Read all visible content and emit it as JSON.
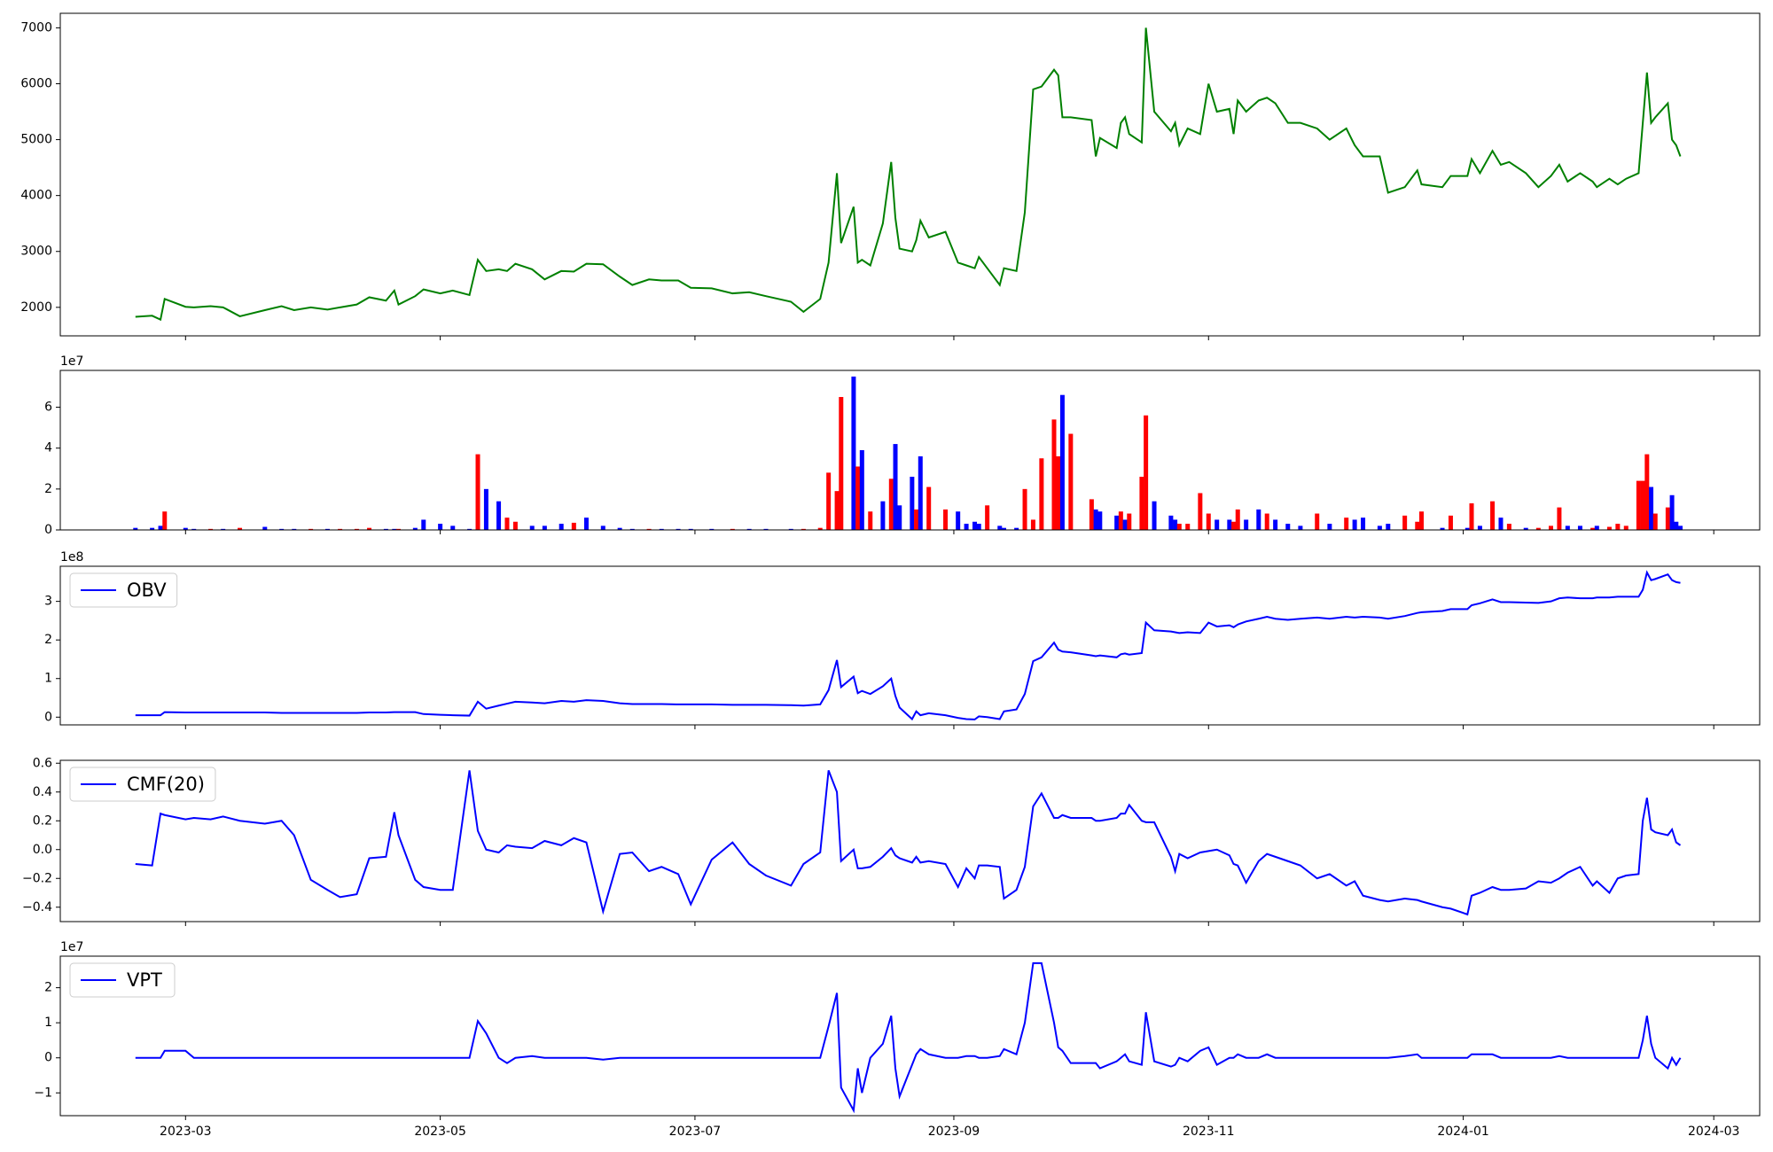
{
  "chart_data": {
    "type": "multi-panel",
    "x": [
      "2023-02-17",
      "2023-02-21",
      "2023-02-23",
      "2023-02-24",
      "2023-03-01",
      "2023-03-03",
      "2023-03-07",
      "2023-03-10",
      "2023-03-14",
      "2023-03-20",
      "2023-03-24",
      "2023-03-27",
      "2023-03-31",
      "2023-04-04",
      "2023-04-07",
      "2023-04-11",
      "2023-04-14",
      "2023-04-18",
      "2023-04-20",
      "2023-04-21",
      "2023-04-25",
      "2023-04-27",
      "2023-05-01",
      "2023-05-04",
      "2023-05-08",
      "2023-05-10",
      "2023-05-12",
      "2023-05-15",
      "2023-05-17",
      "2023-05-19",
      "2023-05-23",
      "2023-05-26",
      "2023-05-30",
      "2023-06-02",
      "2023-06-05",
      "2023-06-09",
      "2023-06-13",
      "2023-06-16",
      "2023-06-20",
      "2023-06-23",
      "2023-06-27",
      "2023-06-30",
      "2023-07-05",
      "2023-07-10",
      "2023-07-14",
      "2023-07-18",
      "2023-07-24",
      "2023-07-27",
      "2023-07-31",
      "2023-08-02",
      "2023-08-04",
      "2023-08-05",
      "2023-08-08",
      "2023-08-09",
      "2023-08-10",
      "2023-08-12",
      "2023-08-15",
      "2023-08-17",
      "2023-08-18",
      "2023-08-19",
      "2023-08-22",
      "2023-08-23",
      "2023-08-24",
      "2023-08-26",
      "2023-08-30",
      "2023-09-02",
      "2023-09-04",
      "2023-09-06",
      "2023-09-07",
      "2023-09-09",
      "2023-09-12",
      "2023-09-13",
      "2023-09-16",
      "2023-09-18",
      "2023-09-20",
      "2023-09-22",
      "2023-09-25",
      "2023-09-26",
      "2023-09-27",
      "2023-09-29",
      "2023-10-04",
      "2023-10-05",
      "2023-10-06",
      "2023-10-10",
      "2023-10-11",
      "2023-10-12",
      "2023-10-13",
      "2023-10-16",
      "2023-10-17",
      "2023-10-19",
      "2023-10-23",
      "2023-10-24",
      "2023-10-25",
      "2023-10-27",
      "2023-10-30",
      "2023-11-01",
      "2023-11-03",
      "2023-11-06",
      "2023-11-07",
      "2023-11-08",
      "2023-11-10",
      "2023-11-13",
      "2023-11-15",
      "2023-11-17",
      "2023-11-20",
      "2023-11-23",
      "2023-11-27",
      "2023-11-30",
      "2023-12-04",
      "2023-12-06",
      "2023-12-08",
      "2023-12-12",
      "2023-12-14",
      "2023-12-18",
      "2023-12-21",
      "2023-12-22",
      "2023-12-27",
      "2023-12-29",
      "2024-01-02",
      "2024-01-03",
      "2024-01-05",
      "2024-01-08",
      "2024-01-10",
      "2024-01-12",
      "2024-01-16",
      "2024-01-19",
      "2024-01-22",
      "2024-01-24",
      "2024-01-26",
      "2024-01-29",
      "2024-02-01",
      "2024-02-02",
      "2024-02-05",
      "2024-02-07",
      "2024-02-09",
      "2024-02-12",
      "2024-02-13",
      "2024-02-14",
      "2024-02-15",
      "2024-02-16",
      "2024-02-19",
      "2024-02-20",
      "2024-02-21",
      "2024-02-22"
    ],
    "xlim": [
      "2023-01-30",
      "2024-03-12"
    ],
    "xticks": [
      {
        "value": "2023-03-01",
        "label": "2023-03"
      },
      {
        "value": "2023-05-01",
        "label": "2023-05"
      },
      {
        "value": "2023-07-01",
        "label": "2023-07"
      },
      {
        "value": "2023-09-01",
        "label": "2023-09"
      },
      {
        "value": "2023-11-01",
        "label": "2023-11"
      },
      {
        "value": "2024-01-01",
        "label": "2024-01"
      },
      {
        "value": "2024-03-01",
        "label": "2024-03"
      }
    ],
    "panels": [
      {
        "type": "line",
        "color": "#008000",
        "ylim": [
          1490,
          7260
        ],
        "yticks": [
          2000,
          3000,
          4000,
          5000,
          6000,
          7000
        ],
        "values": [
          1830,
          1850,
          1780,
          2150,
          2010,
          2000,
          2020,
          2000,
          1840,
          1950,
          2020,
          1950,
          2000,
          1960,
          2000,
          2050,
          2180,
          2120,
          2300,
          2050,
          2200,
          2320,
          2250,
          2300,
          2220,
          2850,
          2650,
          2680,
          2650,
          2780,
          2680,
          2500,
          2650,
          2640,
          2780,
          2770,
          2550,
          2400,
          2500,
          2480,
          2480,
          2350,
          2340,
          2250,
          2270,
          2200,
          2100,
          1920,
          2150,
          2800,
          4400,
          3150,
          3800,
          2800,
          2850,
          2750,
          3500,
          4600,
          3600,
          3050,
          3000,
          3200,
          3550,
          3250,
          3350,
          2800,
          2750,
          2700,
          2900,
          2700,
          2400,
          2700,
          2650,
          3700,
          5900,
          5950,
          6250,
          6150,
          5400,
          5400,
          5350,
          4700,
          5030,
          4850,
          5300,
          5400,
          5100,
          4950,
          7000,
          5500,
          5150,
          5300,
          4900,
          5200,
          5100,
          6000,
          5500,
          5550,
          5100,
          5700,
          5500,
          5700,
          5750,
          5650,
          5300,
          5300,
          5200,
          5000,
          5200,
          4900,
          4700,
          4700,
          4050,
          4150,
          4450,
          4200,
          4150,
          4350,
          4350,
          4650,
          4400,
          4800,
          4550,
          4600,
          4400,
          4150,
          4350,
          4550,
          4250,
          4400,
          4250,
          4150,
          4300,
          4200,
          4300,
          4400,
          5300,
          6200,
          5300,
          5400,
          5650,
          5000,
          4900,
          4700
        ]
      },
      {
        "type": "bar",
        "offset_label": "1e7",
        "ylim": [
          0,
          7.8
        ],
        "yticks": [
          0,
          2,
          4,
          6
        ],
        "values": [
          0.1,
          0.1,
          0.2,
          0.9,
          0.1,
          0.05,
          0.05,
          0.05,
          0.1,
          0.15,
          0.05,
          0.05,
          0.05,
          0.05,
          0.05,
          0.05,
          0.1,
          0.05,
          0.05,
          0.05,
          0.1,
          0.5,
          0.3,
          0.2,
          0.05,
          3.7,
          2.0,
          1.4,
          0.6,
          0.4,
          0.2,
          0.2,
          0.3,
          0.35,
          0.6,
          0.2,
          0.1,
          0.05,
          0.05,
          0.05,
          0.05,
          0.05,
          0.05,
          0.05,
          0.05,
          0.05,
          0.05,
          0.05,
          0.1,
          2.8,
          1.9,
          6.5,
          7.5,
          3.1,
          3.9,
          0.9,
          1.4,
          2.5,
          4.2,
          1.2,
          2.6,
          1.0,
          3.6,
          2.1,
          1.0,
          0.9,
          0.3,
          0.4,
          0.3,
          1.2,
          0.2,
          0.1,
          0.1,
          2.0,
          0.5,
          3.5,
          5.4,
          3.6,
          6.6,
          4.7,
          1.5,
          1.0,
          0.9,
          0.7,
          0.9,
          0.5,
          0.8,
          2.6,
          5.6,
          1.4,
          0.7,
          0.5,
          0.3,
          0.3,
          1.8,
          0.8,
          0.5,
          0.5,
          0.4,
          1.0,
          0.5,
          1.0,
          0.8,
          0.5,
          0.3,
          0.2,
          0.8,
          0.3,
          0.6,
          0.5,
          0.6,
          0.2,
          0.3,
          0.7,
          0.4,
          0.9,
          0.1,
          0.7,
          0.1,
          1.3,
          0.2,
          1.4,
          0.6,
          0.3,
          0.1,
          0.1,
          0.2,
          1.1,
          0.2,
          0.2,
          0.1,
          0.2,
          0.15,
          0.3,
          0.2,
          2.4,
          2.4,
          3.7,
          2.1,
          0.8,
          1.1,
          1.7,
          0.4,
          0.2
        ],
        "colors": [
          "blue",
          "blue",
          "blue",
          "red",
          "blue",
          "blue",
          "red",
          "blue",
          "red",
          "blue",
          "blue",
          "blue",
          "red",
          "blue",
          "red",
          "red",
          "red",
          "blue",
          "blue",
          "red",
          "blue",
          "blue",
          "blue",
          "blue",
          "blue",
          "red",
          "blue",
          "blue",
          "red",
          "red",
          "blue",
          "blue",
          "blue",
          "red",
          "blue",
          "blue",
          "blue",
          "blue",
          "red",
          "blue",
          "blue",
          "blue",
          "blue",
          "red",
          "blue",
          "blue",
          "blue",
          "red",
          "red",
          "red",
          "red",
          "red",
          "blue",
          "red",
          "blue",
          "red",
          "blue",
          "red",
          "blue",
          "blue",
          "blue",
          "red",
          "blue",
          "red",
          "red",
          "blue",
          "blue",
          "blue",
          "blue",
          "red",
          "blue",
          "blue",
          "blue",
          "red",
          "red",
          "red",
          "red",
          "red",
          "blue",
          "red",
          "red",
          "blue",
          "blue",
          "blue",
          "red",
          "blue",
          "red",
          "red",
          "red",
          "blue",
          "blue",
          "blue",
          "red",
          "red",
          "red",
          "red",
          "blue",
          "blue",
          "red",
          "red",
          "blue",
          "blue",
          "red",
          "blue",
          "blue",
          "blue",
          "red",
          "blue",
          "red",
          "blue",
          "blue",
          "blue",
          "blue",
          "red",
          "red",
          "red",
          "blue",
          "red",
          "blue",
          "red",
          "blue",
          "red",
          "blue",
          "red",
          "blue",
          "red",
          "red",
          "red",
          "blue",
          "blue",
          "red",
          "blue",
          "red",
          "red",
          "red",
          "red",
          "red",
          "red",
          "blue",
          "red",
          "red",
          "blue",
          "blue",
          "blue"
        ]
      },
      {
        "type": "line",
        "name": "OBV",
        "color": "#0000ff",
        "offset_label": "1e8",
        "ylim": [
          -0.2,
          3.91
        ],
        "yticks": [
          0,
          1,
          2,
          3
        ],
        "values": [
          0.05,
          0.05,
          0.05,
          0.13,
          0.12,
          0.12,
          0.12,
          0.12,
          0.12,
          0.12,
          0.11,
          0.11,
          0.11,
          0.11,
          0.11,
          0.11,
          0.12,
          0.12,
          0.13,
          0.13,
          0.13,
          0.08,
          0.06,
          0.05,
          0.04,
          0.4,
          0.22,
          0.3,
          0.35,
          0.4,
          0.38,
          0.36,
          0.42,
          0.4,
          0.44,
          0.42,
          0.36,
          0.34,
          0.34,
          0.34,
          0.33,
          0.33,
          0.33,
          0.32,
          0.32,
          0.32,
          0.31,
          0.3,
          0.33,
          0.7,
          1.48,
          0.78,
          1.05,
          0.62,
          0.68,
          0.6,
          0.8,
          1.0,
          0.55,
          0.25,
          -0.05,
          0.15,
          0.05,
          0.1,
          0.05,
          -0.02,
          -0.05,
          -0.06,
          0.02,
          0.0,
          -0.05,
          0.15,
          0.2,
          0.6,
          1.45,
          1.55,
          1.93,
          1.75,
          1.7,
          1.68,
          1.6,
          1.58,
          1.6,
          1.55,
          1.63,
          1.65,
          1.62,
          1.66,
          2.45,
          2.25,
          2.22,
          2.2,
          2.18,
          2.2,
          2.18,
          2.45,
          2.35,
          2.38,
          2.33,
          2.4,
          2.48,
          2.55,
          2.6,
          2.55,
          2.52,
          2.55,
          2.58,
          2.55,
          2.6,
          2.58,
          2.6,
          2.58,
          2.55,
          2.62,
          2.7,
          2.72,
          2.75,
          2.8,
          2.8,
          2.9,
          2.95,
          3.05,
          2.98,
          2.98,
          2.97,
          2.96,
          3.0,
          3.08,
          3.1,
          3.08,
          3.08,
          3.1,
          3.1,
          3.12,
          3.12,
          3.12,
          3.3,
          3.75,
          3.55,
          3.58,
          3.7,
          3.55,
          3.5,
          3.48
        ]
      },
      {
        "type": "line",
        "name": "CMF(20)",
        "color": "#0000ff",
        "ylim": [
          -0.5,
          0.62
        ],
        "yticks": [
          {
            "value": -0.4,
            "label": "−0.4"
          },
          {
            "value": -0.2,
            "label": "−0.2"
          },
          {
            "value": 0,
            "label": "0.0"
          },
          0.2,
          0.4,
          0.6
        ],
        "values": [
          -0.1,
          -0.11,
          0.25,
          0.24,
          0.21,
          0.22,
          0.21,
          0.23,
          0.2,
          0.18,
          0.2,
          0.1,
          -0.21,
          -0.28,
          -0.33,
          -0.31,
          -0.06,
          -0.05,
          0.26,
          0.1,
          -0.21,
          -0.26,
          -0.28,
          -0.28,
          0.55,
          0.13,
          0.0,
          -0.02,
          0.03,
          0.02,
          0.01,
          0.06,
          0.03,
          0.08,
          0.05,
          -0.43,
          -0.03,
          -0.02,
          -0.15,
          -0.12,
          -0.17,
          -0.38,
          -0.07,
          0.05,
          -0.1,
          -0.18,
          -0.25,
          -0.1,
          -0.02,
          0.55,
          0.4,
          -0.08,
          0.0,
          -0.13,
          -0.13,
          -0.12,
          -0.05,
          0.01,
          -0.04,
          -0.06,
          -0.09,
          -0.05,
          -0.09,
          -0.08,
          -0.1,
          -0.26,
          -0.13,
          -0.2,
          -0.11,
          -0.11,
          -0.12,
          -0.34,
          -0.28,
          -0.12,
          0.3,
          0.39,
          0.22,
          0.22,
          0.24,
          0.22,
          0.22,
          0.2,
          0.2,
          0.22,
          0.25,
          0.25,
          0.31,
          0.2,
          0.19,
          0.19,
          -0.05,
          -0.15,
          -0.03,
          -0.06,
          -0.02,
          -0.01,
          0.0,
          -0.04,
          -0.1,
          -0.11,
          -0.23,
          -0.08,
          -0.03,
          -0.05,
          -0.08,
          -0.11,
          -0.2,
          -0.17,
          -0.25,
          -0.22,
          -0.32,
          -0.35,
          -0.36,
          -0.34,
          -0.35,
          -0.36,
          -0.4,
          -0.41,
          -0.45,
          -0.32,
          -0.3,
          -0.26,
          -0.28,
          -0.28,
          -0.27,
          -0.22,
          -0.23,
          -0.2,
          -0.16,
          -0.12,
          -0.25,
          -0.22,
          -0.3,
          -0.2,
          -0.18,
          -0.17,
          0.2,
          0.36,
          0.14,
          0.12,
          0.1,
          0.14,
          0.05,
          0.03
        ]
      },
      {
        "type": "line",
        "name": "VPT",
        "color": "#0000ff",
        "offset_label": "1e7",
        "ylim": [
          -1.65,
          2.9
        ],
        "yticks": [
          {
            "value": -1,
            "label": "−1"
          },
          0,
          1,
          2
        ],
        "values": [
          0,
          0,
          0,
          0.2,
          0.2,
          0,
          0,
          0,
          0,
          0,
          0,
          0,
          0,
          0,
          0,
          0,
          0,
          0,
          0,
          0,
          0,
          0,
          0,
          0,
          0,
          1.05,
          0.7,
          0,
          -0.15,
          0,
          0.05,
          0,
          0,
          0,
          0,
          -0.05,
          0,
          0,
          0,
          0,
          0,
          0,
          0,
          0,
          0,
          0,
          0,
          0,
          0,
          0.9,
          1.85,
          -0.85,
          -1.5,
          -0.3,
          -1.0,
          0,
          0.4,
          1.2,
          -0.3,
          -1.1,
          -0.2,
          0.1,
          0.25,
          0.1,
          0,
          0,
          0.05,
          0.05,
          0,
          0,
          0.05,
          0.25,
          0.1,
          1.0,
          2.7,
          2.7,
          1.0,
          0.3,
          0.2,
          -0.15,
          -0.15,
          -0.15,
          -0.3,
          -0.1,
          0,
          0.1,
          -0.1,
          -0.2,
          1.3,
          -0.1,
          -0.25,
          -0.2,
          0,
          -0.1,
          0.2,
          0.3,
          -0.2,
          0,
          0,
          0.1,
          0,
          0,
          0.1,
          0,
          0,
          0,
          0,
          0,
          0,
          0,
          0,
          0,
          0,
          0.05,
          0.1,
          0,
          0,
          0,
          0,
          0.1,
          0.1,
          0.1,
          0,
          0,
          0,
          0,
          0,
          0.05,
          0,
          0,
          0,
          0,
          0,
          0,
          0,
          0,
          0.5,
          1.2,
          0.4,
          0,
          -0.3,
          0,
          -0.2,
          0
        ]
      }
    ]
  }
}
